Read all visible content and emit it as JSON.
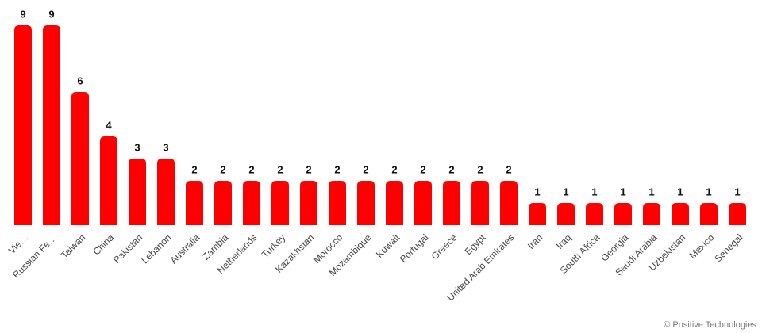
{
  "chart_data": {
    "type": "bar",
    "categories": [
      "Vie…",
      "Russian Fe…",
      "Taiwan",
      "China",
      "Pakistan",
      "Lebanon",
      "Australia",
      "Zambia",
      "Netherlands",
      "Turkey",
      "Kazakhstan",
      "Morocco",
      "Mozambique",
      "Kuwait",
      "Portugal",
      "Greece",
      "Egypt",
      "United Arab Emirates",
      "Iran",
      "Iraq",
      "South Africa",
      "Georgia",
      "Saudi Arabia",
      "Uzbekistan",
      "Mexico",
      "Senegal"
    ],
    "values": [
      9,
      9,
      6,
      4,
      3,
      3,
      2,
      2,
      2,
      2,
      2,
      2,
      2,
      2,
      2,
      2,
      2,
      2,
      1,
      1,
      1,
      1,
      1,
      1,
      1,
      1
    ],
    "color": "#ff0000",
    "ylim": [
      0,
      9
    ],
    "credit": "© Positive Technologies"
  }
}
